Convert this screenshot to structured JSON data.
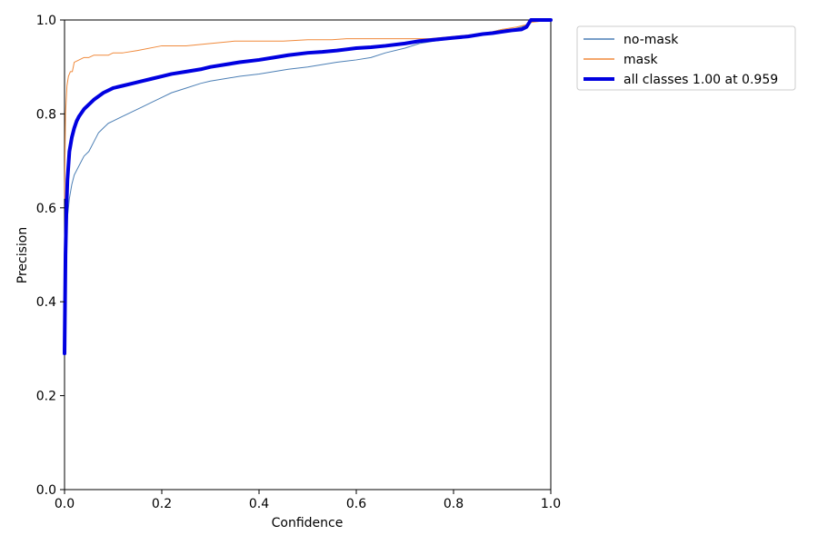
{
  "chart_data": {
    "type": "line",
    "title": "",
    "xlabel": "Confidence",
    "ylabel": "Precision",
    "xlim": [
      0.0,
      1.0
    ],
    "ylim": [
      0.0,
      1.0
    ],
    "xticks": [
      0.0,
      0.2,
      0.4,
      0.6,
      0.8,
      1.0
    ],
    "yticks": [
      0.0,
      0.2,
      0.4,
      0.6,
      0.8,
      1.0
    ],
    "xtick_labels": [
      "0.0",
      "0.2",
      "0.4",
      "0.6",
      "0.8",
      "1.0"
    ],
    "ytick_labels": [
      "0.0",
      "0.2",
      "0.4",
      "0.6",
      "0.8",
      "1.0"
    ],
    "grid": false,
    "legend_position": "upper-right-outside",
    "series": [
      {
        "name": "no-mask",
        "color": "#4c7fb5",
        "line_width": 1,
        "x": [
          0.0,
          0.002,
          0.005,
          0.01,
          0.015,
          0.02,
          0.03,
          0.04,
          0.05,
          0.06,
          0.07,
          0.08,
          0.09,
          0.1,
          0.12,
          0.14,
          0.16,
          0.18,
          0.2,
          0.22,
          0.25,
          0.28,
          0.3,
          0.33,
          0.36,
          0.4,
          0.43,
          0.46,
          0.5,
          0.53,
          0.56,
          0.6,
          0.63,
          0.66,
          0.7,
          0.73,
          0.76,
          0.8,
          0.83,
          0.86,
          0.88,
          0.9,
          0.92,
          0.94,
          0.95,
          0.96,
          0.97,
          1.0
        ],
        "y": [
          0.29,
          0.5,
          0.57,
          0.62,
          0.65,
          0.67,
          0.69,
          0.71,
          0.72,
          0.74,
          0.76,
          0.77,
          0.78,
          0.785,
          0.795,
          0.805,
          0.815,
          0.825,
          0.835,
          0.845,
          0.855,
          0.865,
          0.87,
          0.875,
          0.88,
          0.885,
          0.89,
          0.895,
          0.9,
          0.905,
          0.91,
          0.915,
          0.92,
          0.93,
          0.94,
          0.95,
          0.955,
          0.96,
          0.965,
          0.97,
          0.975,
          0.98,
          0.98,
          0.985,
          0.99,
          0.995,
          1.0,
          1.0
        ]
      },
      {
        "name": "mask",
        "color": "#f08a3c",
        "line_width": 1,
        "x": [
          0.0,
          0.002,
          0.005,
          0.008,
          0.012,
          0.016,
          0.02,
          0.03,
          0.04,
          0.05,
          0.06,
          0.07,
          0.08,
          0.09,
          0.1,
          0.12,
          0.15,
          0.2,
          0.25,
          0.3,
          0.35,
          0.4,
          0.45,
          0.5,
          0.55,
          0.58,
          0.6,
          0.65,
          0.7,
          0.75,
          0.8,
          0.85,
          0.88,
          0.9,
          0.93,
          0.95,
          0.96,
          1.0
        ],
        "y": [
          0.62,
          0.8,
          0.86,
          0.88,
          0.89,
          0.89,
          0.91,
          0.915,
          0.92,
          0.92,
          0.925,
          0.925,
          0.925,
          0.925,
          0.93,
          0.93,
          0.935,
          0.945,
          0.945,
          0.95,
          0.955,
          0.955,
          0.955,
          0.958,
          0.958,
          0.96,
          0.96,
          0.96,
          0.96,
          0.96,
          0.965,
          0.97,
          0.975,
          0.98,
          0.985,
          0.99,
          0.995,
          1.0
        ]
      },
      {
        "name": "all classes 1.00 at 0.959",
        "color": "#0000e0",
        "line_width": 4,
        "x": [
          0.0,
          0.002,
          0.004,
          0.006,
          0.01,
          0.015,
          0.02,
          0.025,
          0.03,
          0.04,
          0.05,
          0.06,
          0.08,
          0.1,
          0.12,
          0.14,
          0.16,
          0.18,
          0.2,
          0.22,
          0.25,
          0.28,
          0.3,
          0.33,
          0.36,
          0.4,
          0.43,
          0.46,
          0.5,
          0.53,
          0.56,
          0.6,
          0.63,
          0.66,
          0.7,
          0.73,
          0.76,
          0.8,
          0.83,
          0.86,
          0.88,
          0.9,
          0.92,
          0.94,
          0.95,
          0.959,
          1.0
        ],
        "y": [
          0.29,
          0.5,
          0.6,
          0.66,
          0.72,
          0.75,
          0.77,
          0.785,
          0.795,
          0.81,
          0.82,
          0.83,
          0.845,
          0.855,
          0.86,
          0.865,
          0.87,
          0.875,
          0.88,
          0.885,
          0.89,
          0.895,
          0.9,
          0.905,
          0.91,
          0.915,
          0.92,
          0.925,
          0.93,
          0.932,
          0.935,
          0.94,
          0.942,
          0.945,
          0.95,
          0.955,
          0.958,
          0.962,
          0.965,
          0.97,
          0.972,
          0.975,
          0.978,
          0.98,
          0.985,
          1.0,
          1.0
        ]
      }
    ]
  }
}
